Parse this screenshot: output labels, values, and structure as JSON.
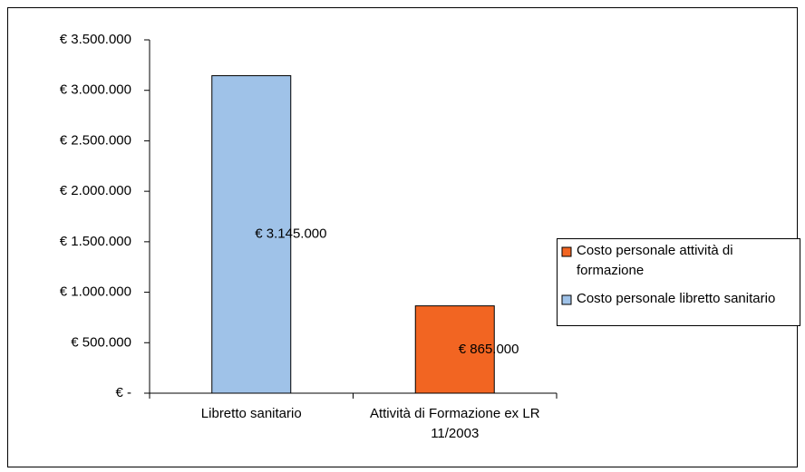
{
  "chart_data": {
    "type": "bar",
    "stacked": true,
    "categories": [
      "Libretto sanitario",
      "Attività di Formazione ex LR 11/2003"
    ],
    "series": [
      {
        "name": "Costo personale attività di formazione",
        "color": "#f26522",
        "values": [
          null,
          865000
        ],
        "value_labels": [
          null,
          "€ 865.000"
        ]
      },
      {
        "name": "Costo personale libretto sanitario",
        "color": "#9fc2e8",
        "values": [
          3145000,
          null
        ],
        "value_labels": [
          "€ 3.145.000",
          null
        ]
      }
    ],
    "ylim": [
      0,
      3500000
    ],
    "yticks": [
      {
        "value": 0,
        "label": "€ -"
      },
      {
        "value": 500000,
        "label": "€ 500.000"
      },
      {
        "value": 1000000,
        "label": "€ 1.000.000"
      },
      {
        "value": 1500000,
        "label": "€ 1.500.000"
      },
      {
        "value": 2000000,
        "label": "€ 2.000.000"
      },
      {
        "value": 2500000,
        "label": "€ 2.500.000"
      },
      {
        "value": 3000000,
        "label": "€ 3.000.000"
      },
      {
        "value": 3500000,
        "label": "€ 3.500.000"
      }
    ],
    "grid": false,
    "legend": "right"
  }
}
